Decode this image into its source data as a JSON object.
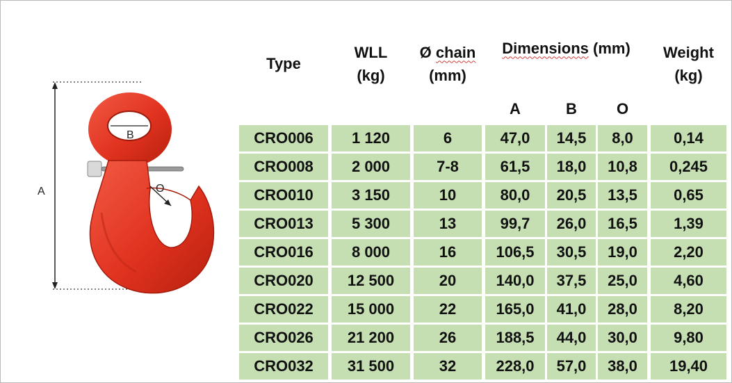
{
  "headers": {
    "type": "Type",
    "wll": [
      "WLL",
      "(kg)"
    ],
    "chain_symbol": "Ø",
    "chain_word": "chain",
    "chain_unit": "(mm)",
    "dim_word": "Dimensions",
    "dim_unit": "(mm)",
    "weight": [
      "Weight",
      "(kg)"
    ],
    "a": "A",
    "b": "B",
    "o": "O"
  },
  "diagram_labels": {
    "a": "A",
    "b": "B",
    "o": "O"
  },
  "rows": [
    [
      "CRO006",
      "1 120",
      "6",
      "47,0",
      "14,5",
      "8,0",
      "0,14"
    ],
    [
      "CRO008",
      "2 000",
      "7-8",
      "61,5",
      "18,0",
      "10,8",
      "0,245"
    ],
    [
      "CRO010",
      "3 150",
      "10",
      "80,0",
      "20,5",
      "13,5",
      "0,65"
    ],
    [
      "CRO013",
      "5 300",
      "13",
      "99,7",
      "26,0",
      "16,5",
      "1,39"
    ],
    [
      "CRO016",
      "8 000",
      "16",
      "106,5",
      "30,5",
      "19,0",
      "2,20"
    ],
    [
      "CRO020",
      "12 500",
      "20",
      "140,0",
      "37,5",
      "25,0",
      "4,60"
    ],
    [
      "CRO022",
      "15 000",
      "22",
      "165,0",
      "41,0",
      "28,0",
      "8,20"
    ],
    [
      "CRO026",
      "21 200",
      "26",
      "188,5",
      "44,0",
      "30,0",
      "9,80"
    ],
    [
      "CRO032",
      "31 500",
      "32",
      "228,0",
      "57,0",
      "38,0",
      "19,40"
    ]
  ],
  "colors": {
    "row_fill": "#c5dfb3",
    "hook_red": "#e23a2c",
    "border": "#b9b9b9"
  }
}
